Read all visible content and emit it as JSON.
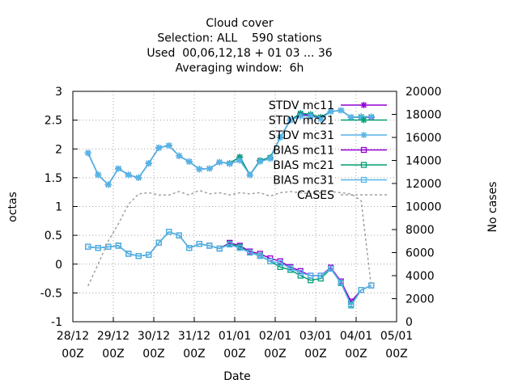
{
  "chart_data": {
    "type": "line",
    "title": [
      "Cloud cover",
      "Selection: ALL    590 stations",
      "Used  00,06,12,18 + 01 03 ... 36",
      "Averaging window:  6h"
    ],
    "xlabel": "Date",
    "ylabel": "octas",
    "y2label": "No cases",
    "xlim": [
      0,
      192
    ],
    "xticks": [
      {
        "value": 0,
        "label": "28/12",
        "sublabel": "00Z"
      },
      {
        "value": 24,
        "label": "29/12",
        "sublabel": "00Z"
      },
      {
        "value": 48,
        "label": "30/12",
        "sublabel": "00Z"
      },
      {
        "value": 72,
        "label": "31/12",
        "sublabel": "00Z"
      },
      {
        "value": 96,
        "label": "01/01",
        "sublabel": "00Z"
      },
      {
        "value": 120,
        "label": "02/01",
        "sublabel": "00Z"
      },
      {
        "value": 144,
        "label": "03/01",
        "sublabel": "00Z"
      },
      {
        "value": 168,
        "label": "04/01",
        "sublabel": "00Z"
      },
      {
        "value": 192,
        "label": "05/01",
        "sublabel": "00Z"
      }
    ],
    "ylim": [
      -1,
      3
    ],
    "yticks": [
      -1,
      -0.5,
      0,
      0.5,
      1,
      1.5,
      2,
      2.5,
      3
    ],
    "y2lim": [
      0,
      20000
    ],
    "y2ticks": [
      0,
      2000,
      4000,
      6000,
      8000,
      10000,
      12000,
      14000,
      16000,
      18000,
      20000
    ],
    "grid": true,
    "legend": "top-right",
    "x": [
      9,
      15,
      21,
      27,
      33,
      39,
      45,
      51,
      57,
      63,
      69,
      75,
      81,
      87,
      93,
      99,
      105,
      111,
      117,
      123,
      129,
      135,
      141,
      147,
      153,
      159,
      165,
      171,
      177
    ],
    "series": [
      {
        "name": "STDV mc11",
        "color": "#9400d3",
        "marker": "star",
        "values": [
          1.93,
          1.55,
          1.38,
          1.66,
          1.55,
          1.5,
          1.75,
          2.02,
          2.06,
          1.88,
          1.78,
          1.65,
          1.66,
          1.77,
          1.75,
          1.86,
          1.55,
          1.8,
          1.85,
          2.2,
          2.5,
          2.6,
          2.58,
          2.55,
          2.65,
          2.67,
          2.55,
          2.55,
          2.55
        ]
      },
      {
        "name": "STDV mc21",
        "color": "#009e73",
        "marker": "star",
        "values": [
          1.93,
          1.55,
          1.38,
          1.66,
          1.55,
          1.5,
          1.75,
          2.02,
          2.06,
          1.88,
          1.78,
          1.65,
          1.66,
          1.77,
          1.75,
          1.86,
          1.55,
          1.8,
          1.85,
          2.2,
          2.5,
          2.62,
          2.6,
          2.55,
          2.65,
          2.67,
          2.55,
          2.56,
          2.56
        ]
      },
      {
        "name": "STDV mc31",
        "color": "#56b4e9",
        "marker": "star",
        "values": [
          1.93,
          1.55,
          1.38,
          1.66,
          1.55,
          1.5,
          1.75,
          2.02,
          2.06,
          1.88,
          1.78,
          1.65,
          1.66,
          1.77,
          1.74,
          1.8,
          1.55,
          1.78,
          1.83,
          2.2,
          2.5,
          2.57,
          2.57,
          2.52,
          2.65,
          2.67,
          2.55,
          2.55,
          2.56
        ]
      },
      {
        "name": "BIAS mc11",
        "color": "#9400d3",
        "marker": "square",
        "values": [
          0.3,
          0.28,
          0.3,
          0.32,
          0.18,
          0.14,
          0.16,
          0.37,
          0.56,
          0.5,
          0.28,
          0.35,
          0.32,
          0.27,
          0.37,
          0.32,
          0.22,
          0.18,
          0.1,
          0.05,
          -0.05,
          -0.12,
          -0.2,
          -0.2,
          -0.06,
          -0.3,
          -0.65,
          -0.45,
          -0.37
        ]
      },
      {
        "name": "BIAS mc21",
        "color": "#009e73",
        "marker": "square",
        "values": [
          0.3,
          0.28,
          0.3,
          0.32,
          0.18,
          0.14,
          0.16,
          0.37,
          0.56,
          0.5,
          0.28,
          0.35,
          0.32,
          0.27,
          0.35,
          0.3,
          0.2,
          0.15,
          0.05,
          -0.05,
          -0.1,
          -0.2,
          -0.28,
          -0.25,
          -0.08,
          -0.33,
          -0.7,
          -0.45,
          -0.37
        ]
      },
      {
        "name": "BIAS mc31",
        "color": "#56b4e9",
        "marker": "square",
        "values": [
          0.3,
          0.28,
          0.3,
          0.32,
          0.18,
          0.14,
          0.16,
          0.37,
          0.56,
          0.5,
          0.28,
          0.35,
          0.32,
          0.27,
          0.34,
          0.28,
          0.2,
          0.14,
          0.05,
          0.02,
          -0.07,
          -0.15,
          -0.2,
          -0.2,
          -0.08,
          -0.32,
          -0.72,
          -0.45,
          -0.37
        ]
      },
      {
        "name": "CASES",
        "color": "#a0a0a0",
        "dash": true,
        "axis": "y2",
        "values": [
          3100,
          5000,
          7000,
          8500,
          10200,
          11100,
          11200,
          11000,
          11000,
          11300,
          11000,
          11400,
          11100,
          11200,
          11000,
          11200,
          11100,
          11200,
          10900,
          11200,
          11300,
          11200,
          11100,
          11200,
          11300,
          11200,
          11100,
          10500,
          3000
        ]
      }
    ]
  }
}
